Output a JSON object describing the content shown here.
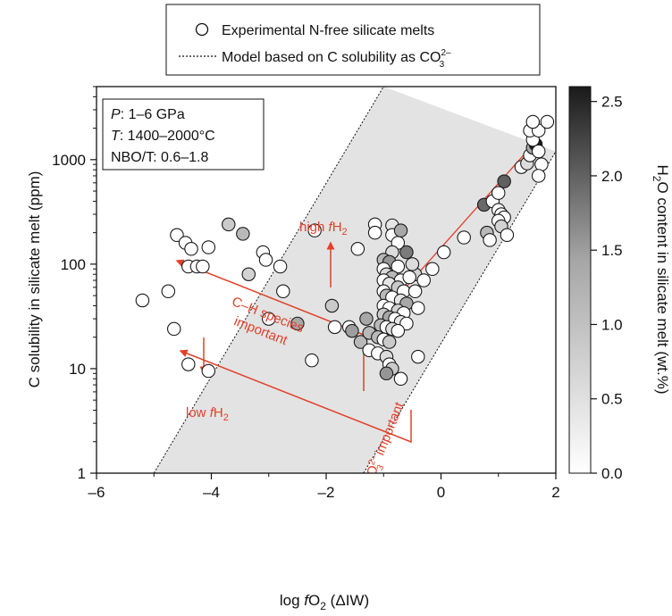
{
  "chart_data": {
    "type": "scatter",
    "xlabel_parts": {
      "pre": "log ",
      "f": "f",
      "O": "O",
      "sub": "2",
      "post": " (ΔIW)"
    },
    "ylabel": "C solubility in silicate melt (ppm)",
    "colorbar_label_parts": {
      "H": "H",
      "sub": "2",
      "post": "O content in silicate melt (wt.%)"
    },
    "xlim": [
      -6.0,
      2.0
    ],
    "ylim": [
      1,
      5000
    ],
    "yscale": "log",
    "x_ticks": [
      -6,
      -4,
      -2,
      0,
      2
    ],
    "x_tick_labels": [
      "–6",
      "–4",
      "–2",
      "0",
      "2"
    ],
    "y_ticks": [
      1,
      10,
      100,
      1000
    ],
    "y_tick_labels": [
      "1",
      "10",
      "100",
      "1000"
    ],
    "colorbar_range": [
      0.0,
      2.6
    ],
    "colorbar_ticks": [
      0.0,
      0.5,
      1.0,
      1.5,
      2.0,
      2.5
    ],
    "colorbar_tick_labels": [
      "0.0",
      "0.5",
      "1.0",
      "1.5",
      "2.0",
      "2.5"
    ],
    "legend": {
      "placement": "top-center",
      "points_label": "Experimental N-free silicate melts",
      "model_label_main": "Model based on C solubility as CO",
      "model_label_sub": "3",
      "model_label_sup": "2–"
    },
    "conditions_box": {
      "p_var": "P",
      "p_text": ": 1–6 GPa",
      "t_var": "T",
      "t_text": ": 1400–2000°C",
      "nbo_text": "NBO/T: 0.6–1.8"
    },
    "annotations": {
      "high_fh2_pre": "high ",
      "high_fh2_f": "f",
      "high_fh2_h": "H",
      "high_fh2_sub": "2",
      "low_fh2_pre": "low ",
      "low_fh2_f": "f",
      "low_fh2_h": "H",
      "low_fh2_sub": "2",
      "ch_line1": "C–H species",
      "ch_line2": "important",
      "co3_main": "CO",
      "co3_sub": "3",
      "co3_sup": "2–",
      "co3_post": " important"
    },
    "band": {
      "upper": [
        [
          -5.0,
          1
        ],
        [
          -1.0,
          5000
        ]
      ],
      "lower": [
        [
          -1.35,
          1
        ],
        [
          2.0,
          1200
        ]
      ]
    },
    "trend_line": [
      [
        -0.9,
        40
      ],
      [
        1.7,
        1600
      ]
    ],
    "points": [
      [
        -5.2,
        45,
        0.0
      ],
      [
        -4.65,
        24,
        0.0
      ],
      [
        -4.4,
        11,
        0.0
      ],
      [
        -4.05,
        9.5,
        0.0
      ],
      [
        -4.6,
        190,
        0.0
      ],
      [
        -4.45,
        160,
        0.0
      ],
      [
        -4.35,
        140,
        0.0
      ],
      [
        -4.05,
        145,
        0.0
      ],
      [
        -4.4,
        95,
        0.0
      ],
      [
        -4.25,
        95,
        0.0
      ],
      [
        -4.15,
        95,
        0.0
      ],
      [
        -4.75,
        55,
        0.0
      ],
      [
        -3.7,
        240,
        0.6
      ],
      [
        -3.45,
        195,
        0.8
      ],
      [
        -3.1,
        130,
        0.0
      ],
      [
        -3.05,
        110,
        0.0
      ],
      [
        -3.35,
        80,
        0.5
      ],
      [
        -2.8,
        95,
        0.0
      ],
      [
        -2.75,
        55,
        0.0
      ],
      [
        -2.2,
        210,
        0.0
      ],
      [
        -2.25,
        12,
        0.0
      ],
      [
        -3.0,
        30,
        0.0
      ],
      [
        -2.5,
        27,
        1.0
      ],
      [
        -1.9,
        40,
        0.6
      ],
      [
        -1.85,
        25,
        0.0
      ],
      [
        -1.6,
        25,
        0.0
      ],
      [
        -1.55,
        23,
        1.1
      ],
      [
        -1.4,
        18,
        0.8
      ],
      [
        -1.45,
        140,
        0.0
      ],
      [
        -1.3,
        30,
        1.0
      ],
      [
        -1.25,
        22,
        0.8
      ],
      [
        -1.15,
        240,
        0.0
      ],
      [
        -1.15,
        200,
        0.0
      ],
      [
        -0.85,
        235,
        0.3
      ],
      [
        -0.85,
        190,
        0.0
      ],
      [
        -0.75,
        160,
        0.0
      ],
      [
        -0.7,
        210,
        1.0
      ],
      [
        -0.6,
        130,
        1.5
      ],
      [
        -0.85,
        130,
        0.4
      ],
      [
        -1.0,
        110,
        0.8
      ],
      [
        -0.9,
        105,
        1.2
      ],
      [
        -0.75,
        95,
        0.0
      ],
      [
        -1.0,
        90,
        0.0
      ],
      [
        -0.95,
        80,
        0.4
      ],
      [
        -0.85,
        75,
        0.8
      ],
      [
        -0.7,
        70,
        0.0
      ],
      [
        -1.0,
        70,
        0.0
      ],
      [
        -0.9,
        65,
        0.3
      ],
      [
        -0.75,
        60,
        0.6
      ],
      [
        -0.65,
        55,
        0.0
      ],
      [
        -1.0,
        55,
        0.0
      ],
      [
        -0.95,
        50,
        0.8
      ],
      [
        -0.85,
        48,
        0.0
      ],
      [
        -0.7,
        45,
        0.3
      ],
      [
        -0.6,
        42,
        1.0
      ],
      [
        -1.0,
        40,
        0.0
      ],
      [
        -0.9,
        38,
        0.0
      ],
      [
        -0.75,
        36,
        0.5
      ],
      [
        -0.65,
        34,
        0.0
      ],
      [
        -1.0,
        33,
        0.6
      ],
      [
        -0.9,
        31,
        1.0
      ],
      [
        -0.8,
        30,
        0.0
      ],
      [
        -0.7,
        28,
        0.3
      ],
      [
        -0.6,
        27,
        0.0
      ],
      [
        -1.05,
        26,
        0.8
      ],
      [
        -0.95,
        25,
        0.0
      ],
      [
        -0.85,
        24,
        0.4
      ],
      [
        -0.75,
        23,
        0.0
      ],
      [
        -1.1,
        20,
        0.8
      ],
      [
        -1.0,
        19,
        0.0
      ],
      [
        -0.9,
        18,
        0.6
      ],
      [
        -1.25,
        15,
        0.0
      ],
      [
        -1.1,
        14,
        0.0
      ],
      [
        -0.95,
        13,
        0.4
      ],
      [
        -0.9,
        11,
        0.0
      ],
      [
        -0.85,
        10,
        0.6
      ],
      [
        -0.95,
        9,
        1.2
      ],
      [
        -0.7,
        8,
        0.0
      ],
      [
        -0.4,
        13,
        0.0
      ],
      [
        -0.4,
        38,
        0.0
      ],
      [
        -0.45,
        55,
        0.0
      ],
      [
        -0.45,
        80,
        0.5
      ],
      [
        -0.5,
        100,
        0.4
      ],
      [
        -0.15,
        90,
        0.0
      ],
      [
        0.05,
        130,
        0.0
      ],
      [
        -0.3,
        70,
        0.0
      ],
      [
        -0.55,
        75,
        0.0
      ],
      [
        0.4,
        180,
        0.0
      ],
      [
        0.75,
        370,
        1.7
      ],
      [
        0.9,
        400,
        0.0
      ],
      [
        0.8,
        200,
        0.8
      ],
      [
        0.85,
        170,
        0.0
      ],
      [
        1.0,
        480,
        0.0
      ],
      [
        1.1,
        620,
        1.8
      ],
      [
        1.0,
        330,
        0.0
      ],
      [
        1.05,
        300,
        0.0
      ],
      [
        1.1,
        280,
        0.0
      ],
      [
        1.0,
        260,
        0.0
      ],
      [
        1.05,
        230,
        0.5
      ],
      [
        1.15,
        190,
        0.0
      ],
      [
        1.4,
        850,
        0.0
      ],
      [
        1.5,
        920,
        0.4
      ],
      [
        1.55,
        1100,
        0.0
      ],
      [
        1.6,
        1300,
        1.0
      ],
      [
        1.65,
        1400,
        2.6
      ],
      [
        1.6,
        1550,
        0.0
      ],
      [
        1.55,
        1900,
        0.0
      ],
      [
        1.7,
        1900,
        0.0
      ],
      [
        1.6,
        2300,
        0.0
      ],
      [
        1.85,
        2300,
        0.0
      ],
      [
        1.75,
        900,
        0.0
      ],
      [
        1.7,
        700,
        0.0
      ],
      [
        1.7,
        1200,
        0.0
      ]
    ],
    "colors": {
      "annotation": "#e2402a",
      "band": "#e3e3e3",
      "marker_edge": "#1a1a1a",
      "colorbar_low": "#ffffff",
      "colorbar_high": "#1a1a1a"
    }
  }
}
